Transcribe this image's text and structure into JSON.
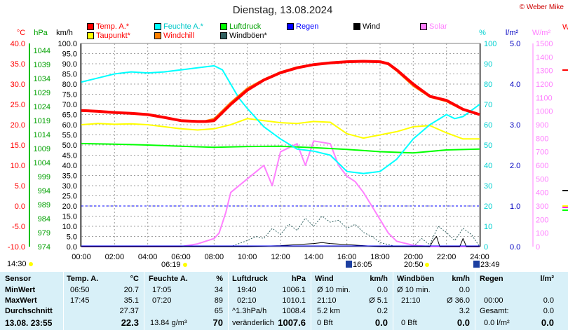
{
  "title": "Dienstag, 13.08.2024",
  "credit": "© Weber Mike",
  "axis_units": {
    "temp": "°C",
    "pressure": "hPa",
    "wind": "km/h",
    "humidity": "%",
    "rain": "l/m²",
    "solar": "W/m²",
    "extra": "W"
  },
  "legend": [
    {
      "label": "Temp. A.*",
      "color": "#ff0000"
    },
    {
      "label": "Feuchte A.*",
      "color": "#00ffff"
    },
    {
      "label": "Luftdruck",
      "color": "#00ff00"
    },
    {
      "label": "Regen",
      "color": "#0000ff"
    },
    {
      "label": "Wind",
      "color": "#000000"
    },
    {
      "label": "Solar",
      "color": "#ff80ff"
    },
    {
      "label": "Taupunkt*",
      "color": "#ffff00"
    },
    {
      "label": "Windchill",
      "color": "#ff8000"
    },
    {
      "label": "Windböen*",
      "color": "#306060"
    }
  ],
  "chart_data": {
    "type": "line",
    "title": "Dienstag, 13.08.2024",
    "x_range": [
      0,
      24
    ],
    "x_ticks": [
      "00:00",
      "02:00",
      "04:00",
      "06:00",
      "08:00",
      "10:00",
      "12:00",
      "14:00",
      "16:00",
      "18:00",
      "20:00",
      "22:00",
      "24:00"
    ],
    "axes": {
      "temp": {
        "range": [
          -10,
          40
        ],
        "ticks": [
          "40.0",
          "35.0",
          "30.0",
          "25.0",
          "20.0",
          "15.0",
          "10.0",
          "5.0",
          "0.0",
          "-5.0",
          "-10.0"
        ]
      },
      "pressure": {
        "range": [
          974,
          1044
        ],
        "ticks": [
          "1044",
          "1039",
          "1034",
          "1029",
          "1024",
          "1019",
          "1014",
          "1009",
          "1004",
          "999",
          "994",
          "989",
          "984",
          "979",
          "974"
        ]
      },
      "wind": {
        "range": [
          0,
          100
        ],
        "ticks": [
          "100.0",
          "95.0",
          "90.0",
          "85.0",
          "80.0",
          "75.0",
          "70.0",
          "65.0",
          "60.0",
          "55.0",
          "50.0",
          "45.0",
          "40.0",
          "35.0",
          "30.0",
          "25.0",
          "20.0",
          "15.0",
          "10.0",
          "5.0",
          "0.0"
        ]
      },
      "humidity": {
        "range": [
          0,
          100
        ],
        "ticks": [
          "100",
          "90",
          "80",
          "70",
          "60",
          "50",
          "40",
          "30",
          "20",
          "10",
          "0"
        ]
      },
      "rain": {
        "range": [
          0,
          5
        ],
        "ticks": [
          "5.0",
          "4.0",
          "3.0",
          "2.0",
          "1.0",
          "0.0"
        ]
      },
      "solar": {
        "range": [
          0,
          1500
        ],
        "ticks": [
          "1500",
          "1400",
          "1300",
          "1200",
          "1100",
          "1000",
          "900",
          "800",
          "700",
          "600",
          "500",
          "400",
          "300",
          "200",
          "100",
          "0"
        ]
      }
    },
    "series": [
      {
        "name": "Temp. A.*",
        "axis": "temp",
        "color": "#ff0000",
        "x": [
          0,
          1,
          2,
          3,
          4,
          5,
          6,
          7,
          7.5,
          8,
          8.5,
          9,
          10,
          11,
          12,
          13,
          14,
          15,
          16,
          17,
          18,
          18.5,
          19,
          20,
          21,
          22,
          23,
          24
        ],
        "y": [
          23.5,
          23.3,
          23,
          22.8,
          22.5,
          21.8,
          21,
          20.8,
          20.8,
          21,
          23,
          25,
          28.5,
          31,
          32.8,
          34,
          34.8,
          35.2,
          35.5,
          35.6,
          35.5,
          35,
          33.5,
          30,
          27,
          26,
          23.8,
          22.5
        ]
      },
      {
        "name": "Windchill",
        "axis": "temp",
        "color": "#ff8000",
        "x": [
          7.5,
          8,
          8.5,
          9,
          10,
          11,
          12,
          13,
          14,
          15,
          16,
          17,
          18,
          18.5,
          19,
          20,
          21,
          22,
          23,
          24
        ],
        "y": [
          21,
          21.5,
          23.5,
          25.5,
          29,
          31.2,
          33,
          34.2,
          34.9,
          35.3,
          35.5,
          35.7,
          35.4,
          34.8,
          33.2,
          29.5,
          26.8,
          25.7,
          23.6,
          22.4
        ]
      },
      {
        "name": "Feuchte A.*",
        "axis": "humidity",
        "color": "#00ffff",
        "x": [
          0,
          1,
          2,
          3,
          4,
          5,
          6,
          7,
          8,
          8.5,
          9,
          9.5,
          10,
          11,
          12,
          13,
          14,
          15,
          16,
          17,
          18,
          19,
          20,
          21,
          22,
          22.5,
          23,
          24
        ],
        "y": [
          81,
          83,
          85,
          86,
          85.5,
          86,
          87,
          88,
          89,
          87,
          80,
          73,
          68,
          59,
          53,
          48,
          47,
          45,
          37,
          36,
          37,
          43,
          53,
          60,
          65,
          63,
          64,
          70
        ]
      },
      {
        "name": "Taupunkt*",
        "axis": "temp",
        "color": "#ffff00",
        "x": [
          0,
          1,
          2,
          3,
          4,
          5,
          6,
          7,
          8,
          9,
          10,
          11,
          12,
          13,
          14,
          15,
          16,
          17,
          18,
          19,
          20,
          21,
          22,
          23,
          24
        ],
        "y": [
          20,
          20.3,
          20.1,
          20.2,
          20,
          19.5,
          19,
          18.7,
          19,
          20,
          21.5,
          21,
          20.5,
          20.3,
          20.8,
          20.6,
          17.8,
          16.7,
          17.5,
          18.3,
          19.5,
          19.8,
          18,
          16.5,
          16.5
        ]
      },
      {
        "name": "Luftdruck",
        "axis": "pressure",
        "color": "#00ff00",
        "x": [
          0,
          2,
          4,
          6,
          8,
          10,
          12,
          14,
          16,
          18,
          20,
          22,
          24
        ],
        "y": [
          1009.5,
          1009.3,
          1009,
          1008.6,
          1008.2,
          1008.5,
          1008.6,
          1008.1,
          1007.5,
          1006.7,
          1006.3,
          1007.3,
          1007.6
        ]
      },
      {
        "name": "Solar",
        "axis": "solar",
        "color": "#ff80ff",
        "x": [
          0,
          6,
          7,
          8,
          8.3,
          8.7,
          9,
          10,
          10.5,
          11,
          11.5,
          12,
          13,
          13.5,
          14,
          15,
          15.5,
          16,
          16.5,
          17,
          17.5,
          18,
          18.5,
          19,
          20,
          21,
          24
        ],
        "y": [
          0,
          0,
          20,
          60,
          100,
          250,
          400,
          500,
          550,
          600,
          450,
          700,
          760,
          600,
          780,
          760,
          600,
          520,
          480,
          400,
          300,
          200,
          100,
          40,
          10,
          0,
          0
        ]
      },
      {
        "name": "Wind",
        "axis": "wind",
        "color": "#000000",
        "x": [
          0,
          10,
          12,
          13,
          14,
          14.5,
          15,
          16,
          17,
          18,
          20,
          21,
          21.2,
          21.4,
          21.6,
          22,
          22.8,
          23,
          23.2,
          24
        ],
        "y": [
          0,
          0,
          0.5,
          1,
          1.5,
          2,
          1.5,
          1,
          0.5,
          0,
          0,
          0,
          3,
          5,
          0,
          0,
          0,
          4,
          0,
          0
        ]
      },
      {
        "name": "Windböen*",
        "axis": "wind",
        "color": "#306060",
        "x": [
          0,
          8,
          9,
          10,
          10.5,
          11,
          11.5,
          12,
          12.5,
          13,
          13.5,
          14,
          14.5,
          15,
          15.5,
          16,
          16.5,
          17,
          17.5,
          18,
          19,
          20,
          20.5,
          21,
          21.5,
          22,
          22.5,
          23,
          23.5,
          24
        ],
        "y": [
          0,
          0,
          0,
          3,
          5,
          4,
          9,
          6,
          11,
          8,
          14,
          10,
          15,
          12,
          13,
          9,
          11,
          7,
          5,
          2,
          0,
          0,
          4,
          1,
          10,
          7,
          3,
          9,
          6,
          0
        ]
      }
    ],
    "rain_series": {
      "name": "Regen",
      "x": [
        0,
        24
      ],
      "y": [
        0,
        0
      ]
    }
  },
  "time_markers": {
    "left": "14:30",
    "bottom_left": "06:19",
    "mid": "16:05",
    "right_start": "20:50",
    "right": "23:49"
  },
  "table": {
    "rows": [
      "Sensor",
      "MinWert",
      "MaxWert",
      "Durchschnitt",
      "13.08. 23:55"
    ],
    "temp": {
      "header": "Temp. A.",
      "unit": "°C",
      "min_time": "06:50",
      "min": "20.7",
      "max_time": "17:45",
      "max": "35.1",
      "avg": "27.37",
      "current": "22.3"
    },
    "hum": {
      "header": "Feuchte A.",
      "unit": "%",
      "min_time": "17:05",
      "min": "34",
      "max_time": "07:20",
      "max": "89",
      "avg": "65",
      "extra": "13.84 g/m³",
      "current": "70"
    },
    "press": {
      "header": "Luftdruck",
      "unit": "hPa",
      "min_time": "19:40",
      "min": "1006.1",
      "max_time": "02:10",
      "max": "1010.1",
      "trend_label": "^1.3hPa/h",
      "trend": "1008.4",
      "state": "veränderlich",
      "current": "1007.6"
    },
    "wind": {
      "header": "Wind",
      "unit": "km/h",
      "r1_label": "Ø 10 min.",
      "r1": "0.0",
      "r2_time": "21:10",
      "r2_label": "Ø 5.1",
      "r3_label": "5.2 km",
      "r3": "0.2",
      "r4_label": "0 Bft",
      "current": "0.0"
    },
    "gust": {
      "header": "Windböen",
      "unit": "km/h",
      "r1_label": "Ø 10 min.",
      "r1": "0.0",
      "r2_time": "21:10",
      "r2_label": "Ø 36.0",
      "r3": "3.2",
      "r4_label": "0 Bft",
      "current": "0.0"
    },
    "rain": {
      "header": "Regen",
      "unit": "l/m²",
      "r2_time": "00:00",
      "r2": "0.0",
      "r3_label": "Gesamt:",
      "r3": "0.0",
      "r4_label": "0.0 l/m²",
      "current": "0.0"
    }
  }
}
